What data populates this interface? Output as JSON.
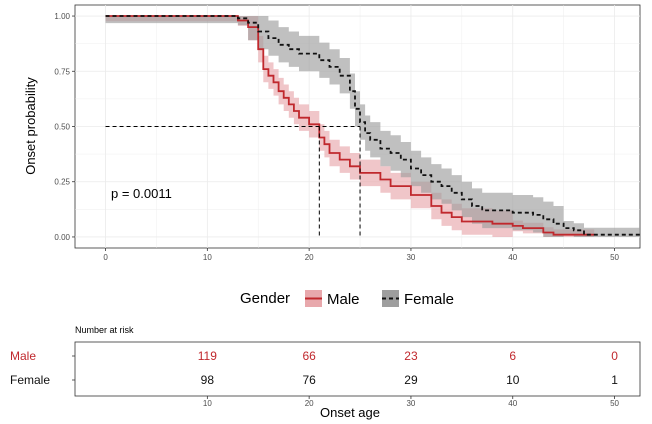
{
  "chart_data": {
    "type": "line",
    "subtype": "kaplan-meier",
    "ylabel": "Onset probability",
    "xlabel": "Onset age",
    "xlim": [
      -3,
      52.5
    ],
    "ylim": [
      -0.05,
      1.05
    ],
    "xticks": [
      0,
      10,
      20,
      30,
      40,
      50
    ],
    "yticks": [
      0,
      0.25,
      0.5,
      0.75,
      1.0
    ],
    "ytick_labels": [
      "0.00",
      "0.25",
      "0.50",
      "0.75",
      "1.00"
    ],
    "annotation": "p = 0.0011",
    "median_line_y": 0.5,
    "medians": {
      "Male": 21,
      "Female": 25
    },
    "legend_title": "Gender",
    "series": [
      {
        "name": "Male",
        "color": "#c0282d",
        "fill": "#e8a8ac",
        "dash": "solid",
        "steps": [
          [
            0,
            1.0
          ],
          [
            10,
            1.0
          ],
          [
            13,
            0.98
          ],
          [
            14,
            0.95
          ],
          [
            15,
            0.85
          ],
          [
            15.5,
            0.76
          ],
          [
            16,
            0.73
          ],
          [
            16.5,
            0.7
          ],
          [
            17,
            0.66
          ],
          [
            17.5,
            0.63
          ],
          [
            18,
            0.6
          ],
          [
            18.5,
            0.57
          ],
          [
            19,
            0.54
          ],
          [
            20,
            0.51
          ],
          [
            21,
            0.45
          ],
          [
            21.5,
            0.42
          ],
          [
            22,
            0.38
          ],
          [
            23,
            0.35
          ],
          [
            24,
            0.32
          ],
          [
            25,
            0.29
          ],
          [
            27,
            0.26
          ],
          [
            28,
            0.23
          ],
          [
            30,
            0.19
          ],
          [
            32,
            0.14
          ],
          [
            33,
            0.11
          ],
          [
            34,
            0.09
          ],
          [
            35,
            0.07
          ],
          [
            38,
            0.06
          ],
          [
            40,
            0.05
          ],
          [
            41,
            0.04
          ],
          [
            43,
            0.02
          ],
          [
            44,
            0.01
          ],
          [
            48,
            0.01
          ]
        ],
        "ci_half": 0.06
      },
      {
        "name": "Female",
        "color": "#111111",
        "fill": "#9e9e9e",
        "dash": "dashed",
        "steps": [
          [
            0,
            1.0
          ],
          [
            10,
            1.0
          ],
          [
            13,
            0.99
          ],
          [
            14,
            0.97
          ],
          [
            15,
            0.93
          ],
          [
            16,
            0.9
          ],
          [
            17,
            0.87
          ],
          [
            18,
            0.85
          ],
          [
            19,
            0.83
          ],
          [
            21,
            0.8
          ],
          [
            22,
            0.77
          ],
          [
            23,
            0.73
          ],
          [
            24,
            0.66
          ],
          [
            24.5,
            0.58
          ],
          [
            25,
            0.52
          ],
          [
            25.5,
            0.47
          ],
          [
            26,
            0.44
          ],
          [
            27,
            0.4
          ],
          [
            28,
            0.38
          ],
          [
            29,
            0.35
          ],
          [
            30,
            0.31
          ],
          [
            31,
            0.28
          ],
          [
            32,
            0.25
          ],
          [
            33,
            0.23
          ],
          [
            34,
            0.2
          ],
          [
            35,
            0.17
          ],
          [
            36,
            0.14
          ],
          [
            37,
            0.12
          ],
          [
            40,
            0.11
          ],
          [
            42,
            0.1
          ],
          [
            43,
            0.08
          ],
          [
            44,
            0.06
          ],
          [
            45,
            0.04
          ],
          [
            46,
            0.03
          ],
          [
            47,
            0.01
          ],
          [
            52.5,
            0.01
          ]
        ],
        "ci_half": 0.08
      }
    ],
    "risk_table": {
      "title": "Number at risk",
      "times": [
        10,
        20,
        30,
        40,
        50
      ],
      "rows": [
        {
          "label": "Male",
          "color": "#c0282d",
          "counts": [
            "119",
            "66",
            "23",
            "6",
            "0"
          ]
        },
        {
          "label": "Female",
          "color": "#111111",
          "counts": [
            "98",
            "76",
            "29",
            "10",
            "1"
          ]
        }
      ]
    }
  }
}
